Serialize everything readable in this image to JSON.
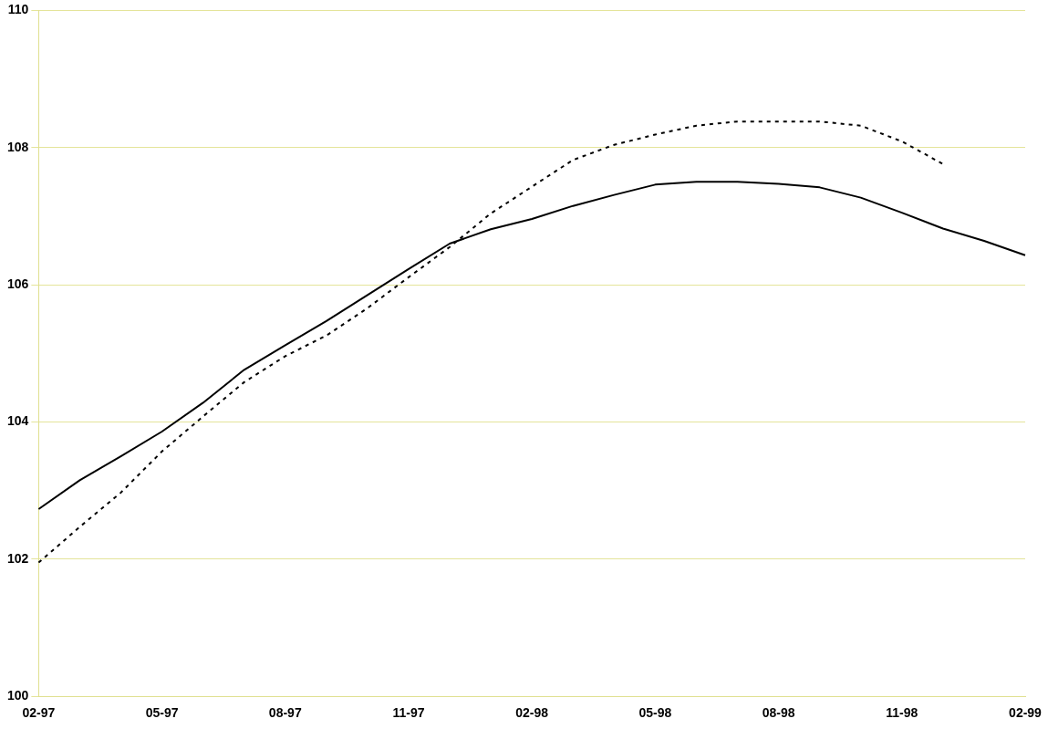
{
  "chart_data": {
    "type": "line",
    "categories": [
      "02-97",
      null,
      null,
      "05-97",
      null,
      null,
      "08-97",
      null,
      null,
      "11-97",
      null,
      null,
      "02-98",
      null,
      null,
      "05-98",
      null,
      null,
      "08-98",
      null,
      null,
      "11-98",
      null,
      null,
      "02-99"
    ],
    "series": [
      {
        "color": "#000000",
        "line_style": "solid",
        "values": [
          102.73,
          103.15,
          103.5,
          103.86,
          104.28,
          104.76,
          105.12,
          105.47,
          105.85,
          106.23,
          106.6,
          106.81,
          106.96,
          107.15,
          107.31,
          107.46,
          107.5,
          107.5,
          107.47,
          107.42,
          107.27,
          107.05,
          106.82,
          106.64,
          106.43
        ]
      },
      {
        "color": "#000000",
        "line_style": "dotted",
        "values": [
          101.95,
          102.47,
          102.97,
          103.57,
          104.08,
          104.58,
          104.96,
          105.26,
          105.66,
          106.11,
          106.55,
          107.04,
          107.43,
          107.82,
          108.04,
          108.19,
          108.32,
          108.38,
          108.38,
          108.38,
          108.32,
          108.09,
          107.76,
          null,
          null
        ]
      }
    ],
    "ylim": [
      100,
      110
    ],
    "yticks": [
      100,
      102,
      104,
      106,
      108,
      110
    ],
    "grid": "y",
    "marker": "none",
    "legend": false
  }
}
